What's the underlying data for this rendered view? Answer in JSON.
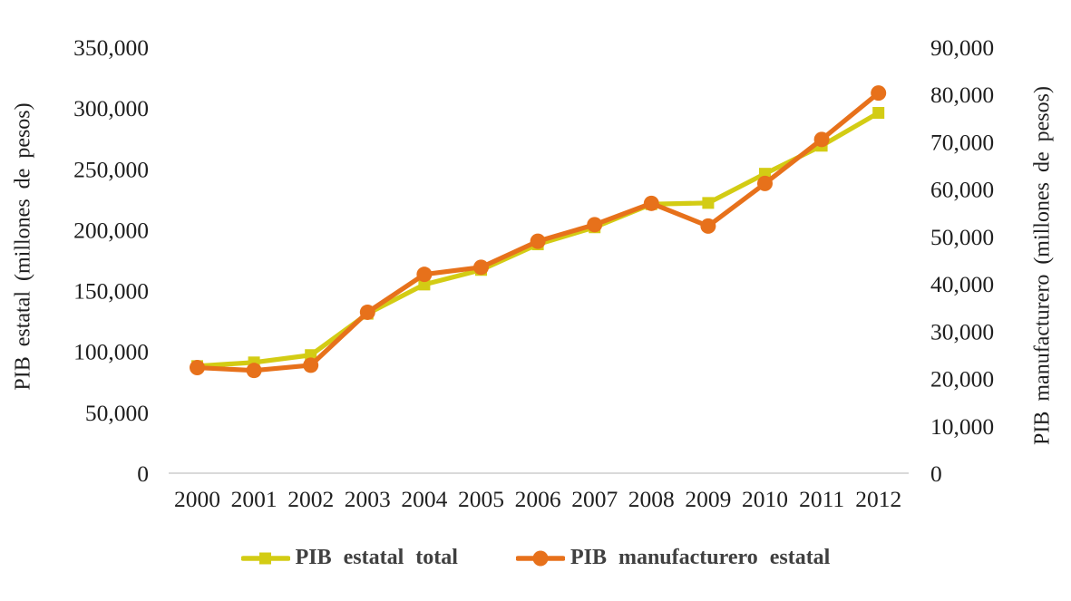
{
  "chart_data": {
    "type": "line",
    "title": "",
    "categories": [
      "2000",
      "2001",
      "2002",
      "2003",
      "2004",
      "2005",
      "2006",
      "2007",
      "2008",
      "2009",
      "2010",
      "2011",
      "2012"
    ],
    "series": [
      {
        "name": "PIB estatal total",
        "axis": "left",
        "marker": "square",
        "color": "#d3cc14",
        "values": [
          88000,
          91000,
          97000,
          131000,
          155000,
          167000,
          188000,
          202000,
          221000,
          222000,
          246000,
          269000,
          296000
        ]
      },
      {
        "name": "PIB manufacturero estatal",
        "axis": "right",
        "marker": "circle",
        "color": "#e7711b",
        "values": [
          22300,
          21700,
          22800,
          34000,
          42000,
          43500,
          49000,
          52500,
          57000,
          52200,
          61200,
          70500,
          80300
        ]
      }
    ],
    "axis_left": {
      "title": "PIB estatal (millones de pesos)",
      "min": 0,
      "max": 350000,
      "tick_step": 50000,
      "tick_labels": [
        "0",
        "50,000",
        "100,000",
        "150,000",
        "200,000",
        "250,000",
        "300,000",
        "350,000"
      ]
    },
    "axis_right": {
      "title": "PIB manufacturero (millones de pesos)",
      "min": 0,
      "max": 90000,
      "tick_step": 10000,
      "tick_labels": [
        "0",
        "10,000",
        "20,000",
        "30,000",
        "40,000",
        "50,000",
        "60,000",
        "70,000",
        "80,000",
        "90,000"
      ]
    },
    "grid": false,
    "legend_position": "bottom",
    "colors": {
      "axis_line": "#d9d9d9",
      "tick_text": "#1f1f1f",
      "axis_title_text": "#1f1f1f",
      "legend_text": "#404040",
      "background": "#ffffff"
    }
  }
}
